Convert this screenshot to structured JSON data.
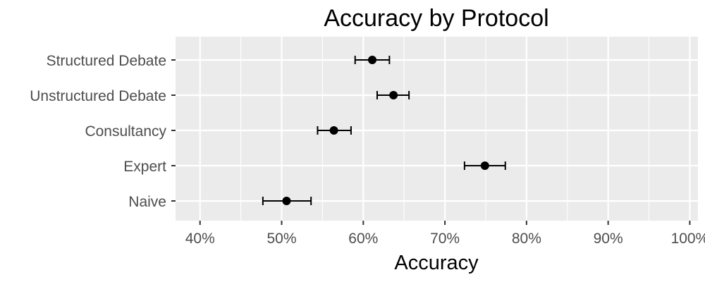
{
  "chart_data": {
    "type": "scatter",
    "title": "Accuracy by Protocol",
    "xlabel": "Accuracy",
    "ylabel": "",
    "xlim": [
      0.37,
      1.01
    ],
    "x_ticks": [
      0.4,
      0.5,
      0.6,
      0.7,
      0.8,
      0.9,
      1.0
    ],
    "x_tick_labels": [
      "40%",
      "50%",
      "60%",
      "70%",
      "80%",
      "90%",
      "100%"
    ],
    "categories": [
      "Structured Debate",
      "Unstructured Debate",
      "Consultancy",
      "Expert",
      "Naive"
    ],
    "points": [
      {
        "label": "Structured Debate",
        "value": 0.611,
        "lower": 0.59,
        "upper": 0.632
      },
      {
        "label": "Unstructured Debate",
        "value": 0.637,
        "lower": 0.617,
        "upper": 0.656
      },
      {
        "label": "Consultancy",
        "value": 0.564,
        "lower": 0.544,
        "upper": 0.585
      },
      {
        "label": "Expert",
        "value": 0.749,
        "lower": 0.724,
        "upper": 0.774
      },
      {
        "label": "Naive",
        "value": 0.506,
        "lower": 0.477,
        "upper": 0.536
      }
    ],
    "grid": true,
    "legend": "none",
    "colors": {
      "panel": "#ebebeb",
      "grid_major": "#ffffff",
      "point": "#000000",
      "tick_text": "#4d4d4d"
    }
  }
}
